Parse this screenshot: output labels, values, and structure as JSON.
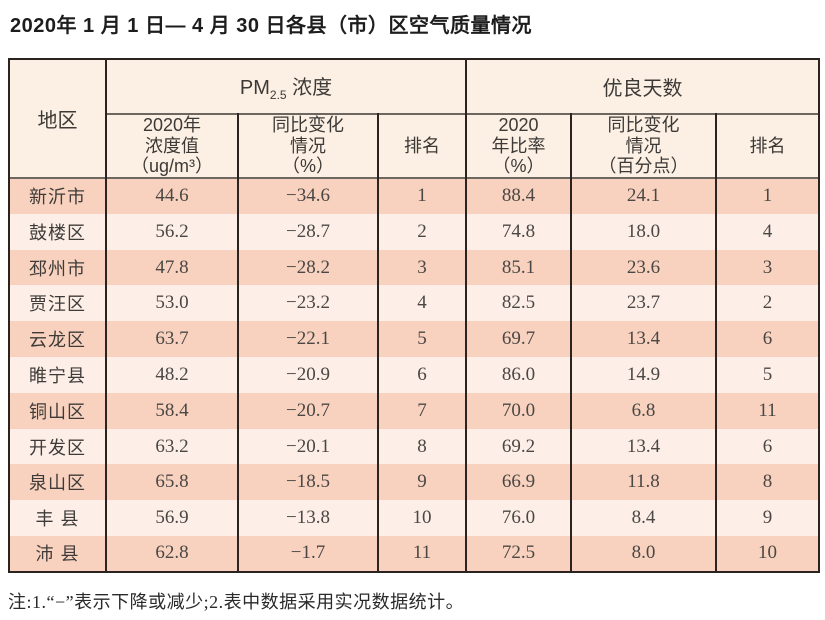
{
  "page": {
    "title": "2020年 1 月 1 日— 4 月 30 日各县（市）区空气质量情况",
    "note": "注:1.“−”表示下降或减少;2.表中数据采用实况数据统计。"
  },
  "colors": {
    "header_bg": "#fcf0e4",
    "row_odd_bg": "#f8d2bf",
    "row_even_bg": "#fdefe8",
    "border": "#2b2320"
  },
  "table": {
    "region_header": "地区",
    "pm_group": {
      "base": "PM",
      "sub": "2.5",
      "suffix": " 浓度"
    },
    "days_group": "优良天数",
    "pm_subheaders": {
      "value": "2020年\n浓度值\n（ug/m³）",
      "change": "同比变化\n情况\n（%）",
      "rank": "排名"
    },
    "days_subheaders": {
      "ratio": "2020\n年比率\n（%）",
      "change": "同比变化\n情况\n（百分点）",
      "rank": "排名"
    },
    "rows": [
      {
        "region": "新沂市",
        "pm_value": "44.6",
        "pm_change": "−34.6",
        "pm_rank": "1",
        "days_ratio": "88.4",
        "days_change": "24.1",
        "days_rank": "1"
      },
      {
        "region": "鼓楼区",
        "pm_value": "56.2",
        "pm_change": "−28.7",
        "pm_rank": "2",
        "days_ratio": "74.8",
        "days_change": "18.0",
        "days_rank": "4"
      },
      {
        "region": "邳州市",
        "pm_value": "47.8",
        "pm_change": "−28.2",
        "pm_rank": "3",
        "days_ratio": "85.1",
        "days_change": "23.6",
        "days_rank": "3"
      },
      {
        "region": "贾汪区",
        "pm_value": "53.0",
        "pm_change": "−23.2",
        "pm_rank": "4",
        "days_ratio": "82.5",
        "days_change": "23.7",
        "days_rank": "2"
      },
      {
        "region": "云龙区",
        "pm_value": "63.7",
        "pm_change": "−22.1",
        "pm_rank": "5",
        "days_ratio": "69.7",
        "days_change": "13.4",
        "days_rank": "6"
      },
      {
        "region": "睢宁县",
        "pm_value": "48.2",
        "pm_change": "−20.9",
        "pm_rank": "6",
        "days_ratio": "86.0",
        "days_change": "14.9",
        "days_rank": "5"
      },
      {
        "region": "铜山区",
        "pm_value": "58.4",
        "pm_change": "−20.7",
        "pm_rank": "7",
        "days_ratio": "70.0",
        "days_change": "6.8",
        "days_rank": "11"
      },
      {
        "region": "开发区",
        "pm_value": "63.2",
        "pm_change": "−20.1",
        "pm_rank": "8",
        "days_ratio": "69.2",
        "days_change": "13.4",
        "days_rank": "6"
      },
      {
        "region": "泉山区",
        "pm_value": "65.8",
        "pm_change": "−18.5",
        "pm_rank": "9",
        "days_ratio": "66.9",
        "days_change": "11.8",
        "days_rank": "8"
      },
      {
        "region": "丰 县",
        "pm_value": "56.9",
        "pm_change": "−13.8",
        "pm_rank": "10",
        "days_ratio": "76.0",
        "days_change": "8.4",
        "days_rank": "9"
      },
      {
        "region": "沛 县",
        "pm_value": "62.8",
        "pm_change": "−1.7",
        "pm_rank": "11",
        "days_ratio": "72.5",
        "days_change": "8.0",
        "days_rank": "10"
      }
    ]
  }
}
